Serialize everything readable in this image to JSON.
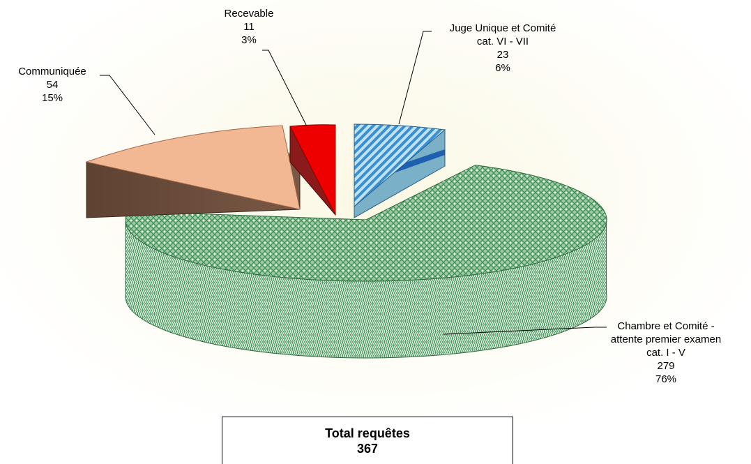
{
  "chart_data": {
    "type": "pie",
    "total": {
      "label": "Total requêtes",
      "value": "367"
    },
    "slices": [
      {
        "lines": [
          "Chambre et Comité -",
          "attente premier examen",
          "cat. I - V",
          "279",
          "76%"
        ],
        "value": 279,
        "percent": 76,
        "exploded": false,
        "colors": {
          "top": "#8fc49a",
          "side": "#3f8f55",
          "pattern": "#2e7d3f"
        }
      },
      {
        "lines": [
          "Communiquée",
          "54",
          "15%"
        ],
        "value": 54,
        "percent": 15,
        "exploded": true,
        "colors": {
          "top": "#f2b894",
          "side": "#6b4b3a"
        }
      },
      {
        "lines": [
          "Recevable",
          "11",
          "3%"
        ],
        "value": 11,
        "percent": 3,
        "exploded": true,
        "colors": {
          "top": "#ee0000",
          "side": "#8b1a1a"
        }
      },
      {
        "lines": [
          "Juge Unique et Comité",
          "cat. VI - VII",
          "23",
          "6%"
        ],
        "value": 23,
        "percent": 6,
        "exploded": true,
        "colors": {
          "top": "#a9d8f0",
          "side": "#7ab0c8",
          "stripe": "#3a8fd0",
          "band": "#1f5fb0"
        }
      }
    ]
  }
}
